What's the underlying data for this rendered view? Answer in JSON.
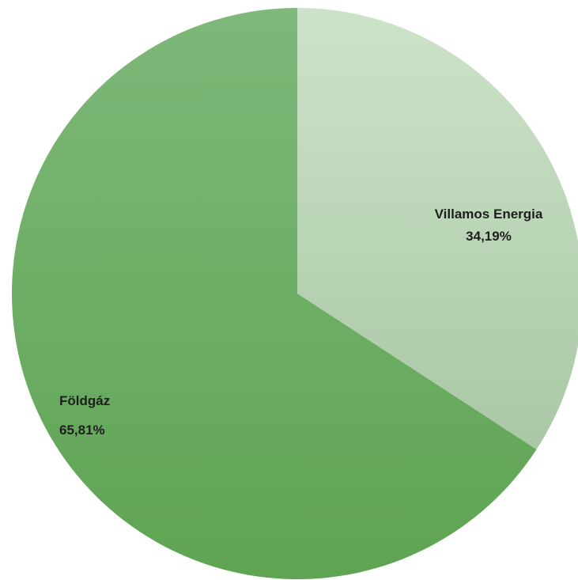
{
  "chart_data": {
    "type": "pie",
    "title": "",
    "start_angle_deg": 0,
    "direction": "clockwise",
    "legend": "none",
    "slices": [
      {
        "label": "Villamos Energia",
        "value": 34.19,
        "value_label": "34,19%",
        "color_top": "#cde3c9",
        "color_bottom": "#a9c7a5"
      },
      {
        "label": "Földgáz",
        "value": 65.81,
        "value_label": "65,81%",
        "color_top": "#7eb87a",
        "color_bottom": "#5ea452"
      }
    ]
  }
}
